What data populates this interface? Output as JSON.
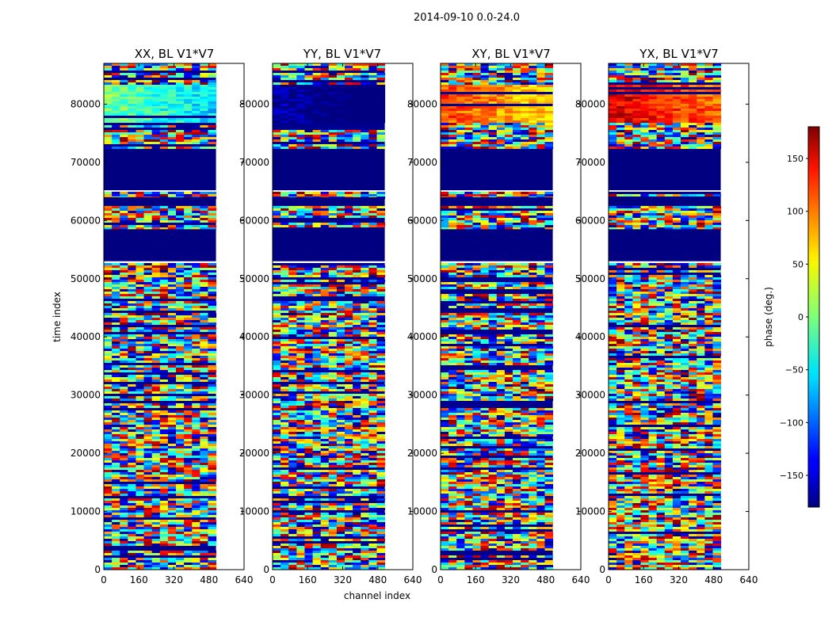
{
  "suptitle": "2014-09-10 0.0-24.0",
  "chart_data": {
    "type": "heatmap",
    "x_range": [
      0,
      640
    ],
    "y_range": [
      0,
      87000
    ],
    "data_extent_x": [
      0,
      512
    ],
    "x_ticks": [
      0,
      160,
      320,
      480,
      640
    ],
    "y_ticks": [
      0,
      10000,
      20000,
      30000,
      40000,
      50000,
      60000,
      70000,
      80000
    ],
    "xlabel": "channel index",
    "ylabel": "time index",
    "panels": [
      {
        "title": "XX, BL V1*V7",
        "top_block_value": -5
      },
      {
        "title": "YY, BL V1*V7",
        "top_block_value": -165
      },
      {
        "title": "XY, BL V1*V7",
        "top_block_value": 110
      },
      {
        "title": "YX, BL V1*V7",
        "top_block_value": 150
      }
    ],
    "flagged_bands": [
      [
        53000,
        58500
      ],
      [
        62500,
        64000
      ],
      [
        65200,
        72300
      ]
    ],
    "colorbar": {
      "label": "phase (deg.)",
      "range": [
        -180,
        180
      ],
      "ticks": [
        -150,
        -100,
        -50,
        0,
        50,
        100,
        150
      ],
      "colormap": "jet"
    }
  }
}
